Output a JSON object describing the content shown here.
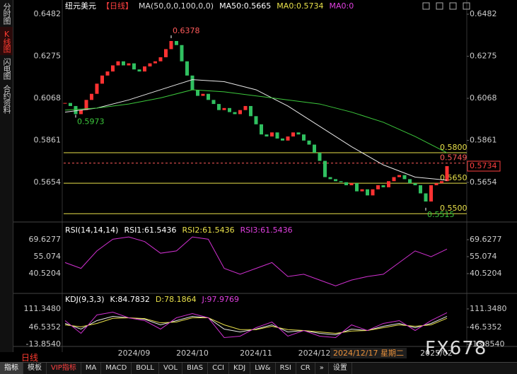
{
  "sidebar_tabs": [
    "分时图",
    "K线图",
    "闪电图",
    "合约资料"
  ],
  "period": "日线",
  "crosshair_date": "2024/12/17 星期二",
  "watermark": "FX678",
  "toolbar": [
    "指标",
    "模板",
    "VIP指标",
    "MA",
    "MACD",
    "BOLL",
    "VOL",
    "BIAS",
    "CCI",
    "KDJ",
    "LW&",
    "RSI",
    "CR",
    "»",
    "设置"
  ],
  "chart_data": [
    {
      "type": "candlestick",
      "title": "纽元美元",
      "subtitle": "【日线】",
      "header_items": [
        {
          "text": "MA(50,0,0,100,0,0)",
          "color": "#dddddd"
        },
        {
          "text": "MA50:0.5665",
          "color": "#ffffff"
        },
        {
          "text": "MA0:0.5734",
          "color": "#e8e04a"
        },
        {
          "text": "MA0:0",
          "color": "#e040e0"
        }
      ],
      "categories": [
        null,
        null,
        null,
        null,
        null,
        null,
        null,
        null,
        null,
        null,
        null,
        null,
        null,
        "2024/09",
        null,
        null,
        null,
        null,
        null,
        null,
        null,
        null,
        null,
        null,
        "2024/10",
        null,
        null,
        null,
        null,
        null,
        null,
        null,
        null,
        null,
        null,
        null,
        "2024/11",
        null,
        null,
        null,
        null,
        null,
        null,
        null,
        null,
        null,
        null,
        "2024/12",
        null,
        null,
        null,
        null,
        null,
        null,
        null,
        null,
        null,
        null,
        null,
        null,
        null,
        null,
        null,
        null,
        null,
        null,
        null,
        null,
        null,
        null,
        "2025/02",
        null,
        null
      ],
      "values": [
        0.6045,
        0.603,
        0.599,
        0.601,
        0.606,
        0.609,
        0.614,
        0.618,
        0.62,
        0.623,
        0.625,
        0.623,
        0.624,
        0.621,
        0.62,
        0.6225,
        0.624,
        0.625,
        0.627,
        0.631,
        0.635,
        0.633,
        0.625,
        0.618,
        0.611,
        0.608,
        0.609,
        0.606,
        0.604,
        0.601,
        0.602,
        0.6,
        0.599,
        0.601,
        0.603,
        0.598,
        0.594,
        0.589,
        0.588,
        0.59,
        0.587,
        0.586,
        0.588,
        0.59,
        0.589,
        0.586,
        0.584,
        0.58,
        0.576,
        0.568,
        0.567,
        0.566,
        0.5655,
        0.564,
        0.565,
        0.561,
        0.562,
        0.559,
        0.562,
        0.564,
        0.563,
        0.566,
        0.568,
        0.569,
        0.567,
        0.565,
        0.564,
        0.56,
        0.556,
        0.564,
        0.565,
        0.566,
        0.5734
      ],
      "up_color": "#ff3232",
      "down_color": "#30c060",
      "series": [
        {
          "color": "#e8e8e8",
          "x": [
            0,
            6,
            12,
            18,
            24,
            30,
            36,
            42,
            48,
            54,
            60,
            66,
            72
          ],
          "values": [
            0.6,
            0.602,
            0.606,
            0.611,
            0.616,
            0.615,
            0.611,
            0.603,
            0.593,
            0.583,
            0.574,
            0.568,
            0.5665
          ]
        },
        {
          "color": "#3cc83c",
          "x": [
            0,
            6,
            12,
            18,
            24,
            30,
            36,
            42,
            48,
            54,
            60,
            66,
            72
          ],
          "values": [
            0.601,
            0.602,
            0.604,
            0.607,
            0.611,
            0.61,
            0.608,
            0.606,
            0.604,
            0.6,
            0.595,
            0.588,
            0.58
          ]
        }
      ],
      "hlines": [
        {
          "value": 0.58,
          "label": "0.5800",
          "color": "#e8e04a",
          "dash": false
        },
        {
          "value": 0.5749,
          "label": "0.5749",
          "color": "#ff5a5a",
          "dash": true
        },
        {
          "value": 0.565,
          "label": "0.5650",
          "color": "#e8e04a",
          "dash": false
        },
        {
          "value": 0.55,
          "label": "0.5500",
          "color": "#e8e04a",
          "dash": false
        }
      ],
      "points": [
        {
          "x": 20,
          "value": 0.6378,
          "color": "#ff5a5a",
          "pos": "above"
        },
        {
          "x": 2,
          "value": 0.5973,
          "color": "#3cc83c",
          "pos": "below"
        },
        {
          "x": 68,
          "value": 0.5515,
          "color": "#3cc83c",
          "pos": "below"
        }
      ],
      "last": 0.5734,
      "ylim": [
        0.5473,
        0.6524
      ],
      "yticks": [
        0.6482,
        0.6275,
        0.6068,
        0.5861,
        0.5654
      ]
    },
    {
      "type": "line",
      "title": "RSI(14,14,14)",
      "header_items": [
        {
          "text": "RSI1:61.5436",
          "color": "#ffffff"
        },
        {
          "text": "RSI2:61.5436",
          "color": "#e8e04a"
        },
        {
          "text": "RSI3:61.5436",
          "color": "#e040e0"
        }
      ],
      "series": [
        {
          "color": "#d030d0",
          "x": [
            0,
            3,
            6,
            9,
            12,
            15,
            18,
            21,
            24,
            27,
            30,
            33,
            36,
            39,
            42,
            45,
            48,
            51,
            54,
            57,
            60,
            63,
            66,
            69,
            72
          ],
          "values": [
            50,
            45,
            60,
            70,
            72,
            68,
            58,
            60,
            72,
            70,
            45,
            40,
            45,
            50,
            38,
            40,
            35,
            30,
            35,
            38,
            40,
            50,
            60,
            55,
            61.5436
          ]
        }
      ],
      "ylim": [
        26.57,
        79.94
      ],
      "yticks": [
        69.6277,
        55.074,
        {
          "value": 40.5204,
          "label": "40.5204"
        }
      ]
    },
    {
      "type": "line",
      "title": "KDJ(9,3,3)",
      "header_items": [
        {
          "text": "K:84.7832",
          "color": "#ffffff"
        },
        {
          "text": "D:78.1864",
          "color": "#e8e04a"
        },
        {
          "text": "J:97.9769",
          "color": "#e040e0"
        }
      ],
      "series": [
        {
          "color": "#e8e8e8",
          "x": [
            0,
            3,
            6,
            9,
            12,
            15,
            18,
            21,
            24,
            27,
            30,
            33,
            36,
            39,
            42,
            45,
            48,
            51,
            54,
            57,
            60,
            63,
            66,
            69,
            72
          ],
          "values": [
            60,
            40,
            70,
            85,
            80,
            75,
            55,
            70,
            85,
            80,
            40,
            30,
            40,
            55,
            30,
            35,
            25,
            20,
            40,
            35,
            50,
            60,
            45,
            60,
            84.7832
          ]
        },
        {
          "color": "#e8e04a",
          "x": [
            0,
            3,
            6,
            9,
            12,
            15,
            18,
            21,
            24,
            27,
            30,
            33,
            36,
            39,
            42,
            45,
            48,
            51,
            54,
            57,
            60,
            63,
            66,
            69,
            72
          ],
          "values": [
            55,
            48,
            60,
            78,
            80,
            77,
            62,
            65,
            80,
            80,
            55,
            38,
            38,
            50,
            38,
            35,
            30,
            25,
            33,
            35,
            45,
            55,
            50,
            55,
            78.1864
          ]
        },
        {
          "color": "#d030d0",
          "x": [
            0,
            3,
            6,
            9,
            12,
            15,
            18,
            21,
            24,
            27,
            30,
            33,
            36,
            39,
            42,
            45,
            48,
            51,
            54,
            57,
            60,
            63,
            66,
            69,
            72
          ],
          "values": [
            70,
            25,
            90,
            100,
            80,
            70,
            40,
            80,
            95,
            80,
            10,
            15,
            45,
            65,
            15,
            35,
            15,
            10,
            55,
            35,
            60,
            70,
            35,
            70,
            97.9769
          ]
        }
      ],
      "ylim": [
        -21.3,
        153.7
      ],
      "yticks": [
        {
          "value": 111.348,
          "label": "111.3480"
        },
        {
          "value": 46.5352,
          "label": "46.5352"
        },
        {
          "value": -13.854,
          "label": "-13.8540"
        }
      ]
    }
  ]
}
